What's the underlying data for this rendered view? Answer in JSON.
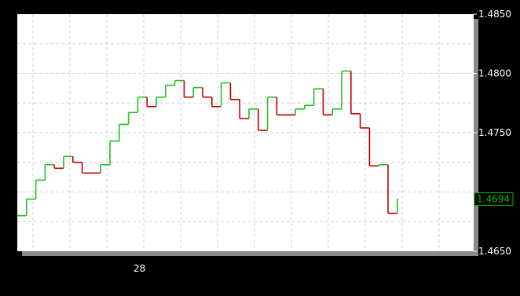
{
  "chart_data": {
    "type": "line",
    "style": "step",
    "background": "#000000",
    "plot_background": "#ffffff",
    "grid": true,
    "y_axis_position": "right",
    "ylim": [
      1.465,
      1.485
    ],
    "y_ticks": [
      {
        "value": 1.485,
        "label": "1.4850"
      },
      {
        "value": 1.48,
        "label": "1.4800"
      },
      {
        "value": 1.475,
        "label": "1.4750"
      },
      {
        "value": 1.465,
        "label": "1.4650"
      }
    ],
    "x_tick_labels": [
      {
        "index": 7,
        "label": "28"
      }
    ],
    "last_value": {
      "value": 1.4694,
      "label": "1.4694",
      "color": "#00c000"
    },
    "colors": {
      "up": "#22c022",
      "down": "#c00000",
      "grid": "#cfcfcf",
      "axis_text": "#ffffff"
    },
    "series": [
      {
        "values": [
          1.468,
          1.4694,
          1.471,
          1.4723,
          1.472,
          1.473,
          1.4725,
          1.4716,
          1.4716,
          1.4723,
          1.4743,
          1.4757,
          1.4767,
          1.478,
          1.4772,
          1.478,
          1.479,
          1.4794,
          1.478,
          1.4788,
          1.478,
          1.4772,
          1.4792,
          1.4778,
          1.4762,
          1.477,
          1.4752,
          1.478,
          1.4765,
          1.4765,
          1.477,
          1.4773,
          1.4787,
          1.4765,
          1.477,
          1.4802,
          1.4766,
          1.4754,
          1.4722,
          1.4723,
          1.4682,
          1.4694
        ]
      }
    ]
  }
}
